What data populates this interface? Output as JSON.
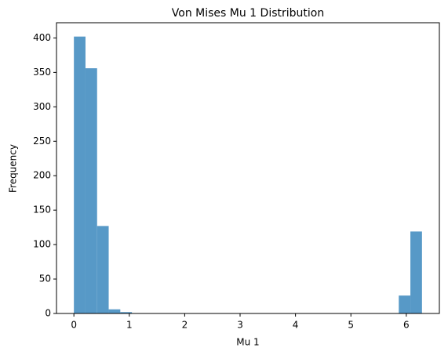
{
  "chart_data": {
    "type": "histogram",
    "title": "Von Mises Mu 1 Distribution",
    "xlabel": "Mu 1",
    "ylabel": "Frequency",
    "bins": [
      0,
      0.2094,
      0.4189,
      0.6283,
      0.8378,
      1.0472,
      1.2566,
      1.4661,
      1.6755,
      1.885,
      2.0944,
      2.3038,
      2.5133,
      2.7227,
      2.9322,
      3.1416,
      3.351,
      3.5605,
      3.7699,
      3.9794,
      4.1888,
      4.3982,
      4.6077,
      4.8171,
      5.0265,
      5.236,
      5.4454,
      5.6549,
      5.8643,
      6.0737,
      6.2832
    ],
    "values": [
      402,
      356,
      127,
      6,
      2,
      0,
      0,
      0,
      0,
      0,
      0,
      0,
      0,
      0,
      0,
      0,
      0,
      0,
      0,
      0,
      0,
      0,
      0,
      0,
      0,
      0,
      0,
      0,
      26,
      119
    ],
    "color": "#5799c7",
    "xlim": [
      -0.314,
      6.597
    ],
    "xticks": [
      0,
      1,
      2,
      3,
      4,
      5,
      6
    ],
    "ylim": [
      0,
      422.1
    ],
    "yticks": [
      0,
      50,
      100,
      150,
      200,
      250,
      300,
      350,
      400
    ]
  }
}
